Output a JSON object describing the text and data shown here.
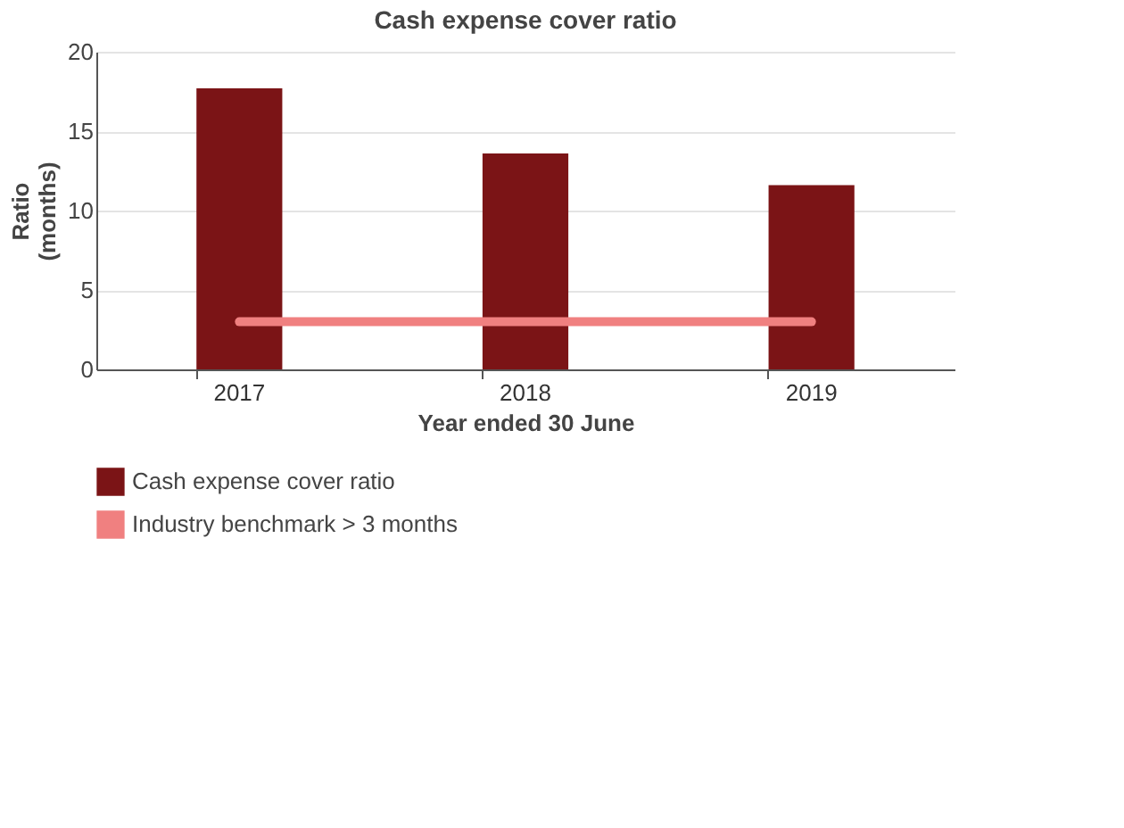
{
  "chart_data": {
    "type": "bar",
    "title": "Cash expense cover ratio",
    "xlabel": "Year ended 30 June",
    "ylabel": "Ratio (months)",
    "categories": [
      "2017",
      "2018",
      "2019"
    ],
    "series": [
      {
        "name": "Cash expense cover ratio",
        "color": "#7b1416",
        "values": [
          17.7,
          13.6,
          11.6
        ]
      },
      {
        "name": "Industry benchmark > 3 months",
        "color": "#f08080",
        "type": "line",
        "values": [
          3,
          3,
          3
        ]
      }
    ],
    "ylim": [
      0,
      20
    ],
    "yticks": [
      0,
      5,
      10,
      15,
      20
    ],
    "grid": "y",
    "legend": "bottom"
  }
}
